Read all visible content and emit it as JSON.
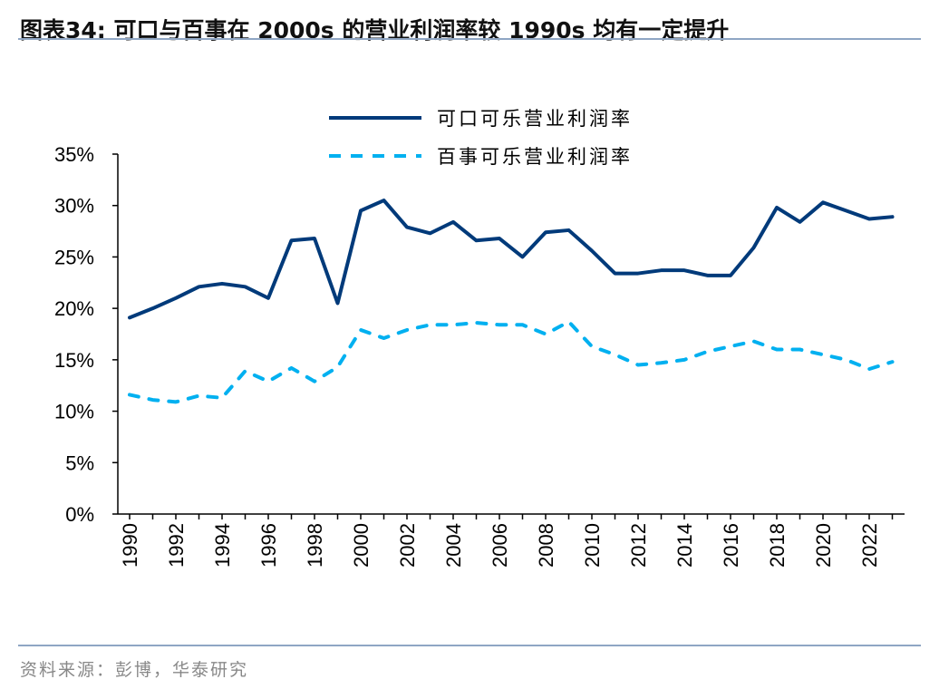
{
  "title": "图表34:  可口与百事在 2000s 的营业利润率较 1990s 均有一定提升",
  "source": "资料来源：彭博，华泰研究",
  "colors": {
    "coke": "#003a7a",
    "pepsi": "#00b0f0"
  },
  "chart_data": {
    "type": "line",
    "title": "可口与百事在 2000s 的营业利润率较 1990s 均有一定提升",
    "x": [
      1990,
      1991,
      1992,
      1993,
      1994,
      1995,
      1996,
      1997,
      1998,
      1999,
      2000,
      2001,
      2002,
      2003,
      2004,
      2005,
      2006,
      2007,
      2008,
      2009,
      2010,
      2011,
      2012,
      2013,
      2014,
      2015,
      2016,
      2017,
      2018,
      2019,
      2020,
      2021,
      2022,
      2023
    ],
    "xticks": [
      "1990",
      "1992",
      "1994",
      "1996",
      "1998",
      "2000",
      "2002",
      "2004",
      "2006",
      "2008",
      "2010",
      "2012",
      "2014",
      "2016",
      "2018",
      "2020",
      "2022"
    ],
    "yticks": [
      "0%",
      "5%",
      "10%",
      "15%",
      "20%",
      "25%",
      "30%",
      "35%"
    ],
    "ylim": [
      0,
      35
    ],
    "legend_position": "top-center",
    "series": [
      {
        "name": "可口可乐营业利润率",
        "style": "solid",
        "values": [
          19.1,
          20.0,
          21.0,
          22.1,
          22.4,
          22.1,
          21.0,
          26.6,
          26.8,
          20.5,
          29.5,
          30.5,
          27.9,
          27.3,
          28.4,
          26.6,
          26.8,
          25.0,
          27.4,
          27.6,
          25.6,
          23.4,
          23.4,
          23.7,
          23.7,
          23.2,
          23.2,
          25.9,
          29.8,
          28.4,
          30.3,
          29.5,
          28.7,
          28.9
        ]
      },
      {
        "name": "百事可乐营业利润率",
        "style": "dashed",
        "values": [
          11.6,
          11.1,
          10.9,
          11.5,
          11.3,
          13.9,
          12.9,
          14.2,
          12.9,
          14.3,
          17.9,
          17.1,
          17.9,
          18.4,
          18.4,
          18.6,
          18.4,
          18.4,
          17.5,
          18.7,
          16.3,
          15.5,
          14.5,
          14.7,
          15.0,
          15.8,
          16.3,
          16.8,
          16.0,
          16.0,
          15.5,
          15.0,
          14.1,
          14.8
        ]
      }
    ]
  }
}
